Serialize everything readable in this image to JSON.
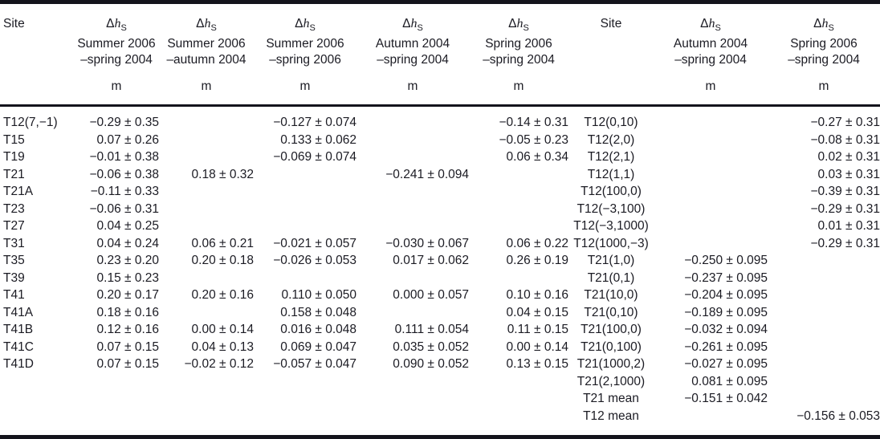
{
  "table": {
    "columns": [
      {
        "key": "site",
        "label": "Site"
      },
      {
        "key": "c1",
        "symbol": "Δ",
        "variable": "h",
        "subscript": "S",
        "period_line1": "Summer 2006",
        "period_line2": "–spring 2004",
        "unit": "m"
      },
      {
        "key": "c2",
        "symbol": "Δ",
        "variable": "h",
        "subscript": "S",
        "period_line1": "Summer 2006",
        "period_line2": "–autumn 2004",
        "unit": "m"
      },
      {
        "key": "c3",
        "symbol": "Δ",
        "variable": "h",
        "subscript": "S",
        "period_line1": "Summer 2006",
        "period_line2": "–spring 2006",
        "unit": "m"
      },
      {
        "key": "c4",
        "symbol": "Δ",
        "variable": "h",
        "subscript": "S",
        "period_line1": "Autumn 2004",
        "period_line2": "–spring 2004",
        "unit": "m"
      },
      {
        "key": "c5",
        "symbol": "Δ",
        "variable": "h",
        "subscript": "S",
        "period_line1": "Spring 2006",
        "period_line2": "–spring 2004",
        "unit": "m"
      },
      {
        "key": "site2",
        "label": "Site"
      },
      {
        "key": "c6",
        "symbol": "Δ",
        "variable": "h",
        "subscript": "S",
        "period_line1": "Autumn 2004",
        "period_line2": "–spring 2004",
        "unit": "m"
      },
      {
        "key": "c7",
        "symbol": "Δ",
        "variable": "h",
        "subscript": "S",
        "period_line1": "Spring 2006",
        "period_line2": "–spring 2004",
        "unit": "m"
      }
    ],
    "rows": [
      {
        "site": "T12(7,−1)",
        "c1": "−0.29 ± 0.35",
        "c2": "",
        "c3": "−0.127 ± 0.074",
        "c4": "",
        "c5": "−0.14 ± 0.31",
        "site2": "T12(0,10)",
        "c6": "",
        "c7": "−0.27 ± 0.31"
      },
      {
        "site": "T15",
        "c1": "0.07 ± 0.26",
        "c2": "",
        "c3": "0.133 ± 0.062",
        "c4": "",
        "c5": "−0.05 ± 0.23",
        "site2": "T12(2,0)",
        "c6": "",
        "c7": "−0.08 ± 0.31"
      },
      {
        "site": "T19",
        "c1": "−0.01 ± 0.38",
        "c2": "",
        "c3": "−0.069 ± 0.074",
        "c4": "",
        "c5": "0.06 ± 0.34",
        "site2": "T12(2,1)",
        "c6": "",
        "c7": "0.02 ± 0.31"
      },
      {
        "site": "T21",
        "c1": "−0.06 ± 0.38",
        "c2": "0.18 ± 0.32",
        "c3": "",
        "c4": "−0.241 ± 0.094",
        "c5": "",
        "site2": "T12(1,1)",
        "c6": "",
        "c7": "0.03 ± 0.31"
      },
      {
        "site": "T21A",
        "c1": "−0.11 ± 0.33",
        "c2": "",
        "c3": "",
        "c4": "",
        "c5": "",
        "site2": "T12(100,0)",
        "c6": "",
        "c7": "−0.39 ± 0.31"
      },
      {
        "site": "T23",
        "c1": "−0.06 ± 0.31",
        "c2": "",
        "c3": "",
        "c4": "",
        "c5": "",
        "site2": "T12(−3,100)",
        "c6": "",
        "c7": "−0.29 ± 0.31"
      },
      {
        "site": "T27",
        "c1": "0.04 ± 0.25",
        "c2": "",
        "c3": "",
        "c4": "",
        "c5": "",
        "site2": "T12(−3,1000)",
        "c6": "",
        "c7": "0.01 ± 0.31"
      },
      {
        "site": "T31",
        "c1": "0.04 ± 0.24",
        "c2": "0.06 ± 0.21",
        "c3": "−0.021 ± 0.057",
        "c4": "−0.030 ± 0.067",
        "c5": "0.06 ± 0.22",
        "site2": "T12(1000,−3)",
        "c6": "",
        "c7": "−0.29 ± 0.31"
      },
      {
        "site": "T35",
        "c1": "0.23 ± 0.20",
        "c2": "0.20 ± 0.18",
        "c3": "−0.026 ± 0.053",
        "c4": "0.017 ± 0.062",
        "c5": "0.26 ± 0.19",
        "site2": "T21(1,0)",
        "c6": "−0.250 ± 0.095",
        "c7": ""
      },
      {
        "site": "T39",
        "c1": "0.15 ± 0.23",
        "c2": "",
        "c3": "",
        "c4": "",
        "c5": "",
        "site2": "T21(0,1)",
        "c6": "−0.237 ± 0.095",
        "c7": ""
      },
      {
        "site": "T41",
        "c1": "0.20 ± 0.17",
        "c2": "0.20 ± 0.16",
        "c3": "0.110 ± 0.050",
        "c4": "0.000 ± 0.057",
        "c5": "0.10 ± 0.16",
        "site2": "T21(10,0)",
        "c6": "−0.204 ± 0.095",
        "c7": ""
      },
      {
        "site": "T41A",
        "c1": "0.18 ± 0.16",
        "c2": "",
        "c3": "0.158 ± 0.048",
        "c4": "",
        "c5": "0.04 ± 0.15",
        "site2": "T21(0,10)",
        "c6": "−0.189 ± 0.095",
        "c7": ""
      },
      {
        "site": "T41B",
        "c1": "0.12 ± 0.16",
        "c2": "0.00 ± 0.14",
        "c3": "0.016 ± 0.048",
        "c4": "0.111 ± 0.054",
        "c5": "0.11 ± 0.15",
        "site2": "T21(100,0)",
        "c6": "−0.032 ± 0.094",
        "c7": ""
      },
      {
        "site": "T41C",
        "c1": "0.07 ± 0.15",
        "c2": "0.04 ± 0.13",
        "c3": "0.069 ± 0.047",
        "c4": "0.035 ± 0.052",
        "c5": "0.00 ± 0.14",
        "site2": "T21(0,100)",
        "c6": "−0.261 ± 0.095",
        "c7": ""
      },
      {
        "site": "T41D",
        "c1": "0.07 ± 0.15",
        "c2": "−0.02 ± 0.12",
        "c3": "−0.057 ± 0.047",
        "c4": "0.090 ± 0.052",
        "c5": "0.13 ± 0.15",
        "site2": "T21(1000,2)",
        "c6": "−0.027 ± 0.095",
        "c7": ""
      },
      {
        "site": "",
        "c1": "",
        "c2": "",
        "c3": "",
        "c4": "",
        "c5": "",
        "site2": "T21(2,1000)",
        "c6": "0.081 ± 0.095",
        "c7": ""
      },
      {
        "site": "",
        "c1": "",
        "c2": "",
        "c3": "",
        "c4": "",
        "c5": "",
        "site2": "T21 mean",
        "c6": "−0.151 ± 0.042",
        "c7": ""
      },
      {
        "site": "",
        "c1": "",
        "c2": "",
        "c3": "",
        "c4": "",
        "c5": "",
        "site2": "T12 mean",
        "c6": "",
        "c7": "−0.156 ± 0.053"
      }
    ]
  }
}
